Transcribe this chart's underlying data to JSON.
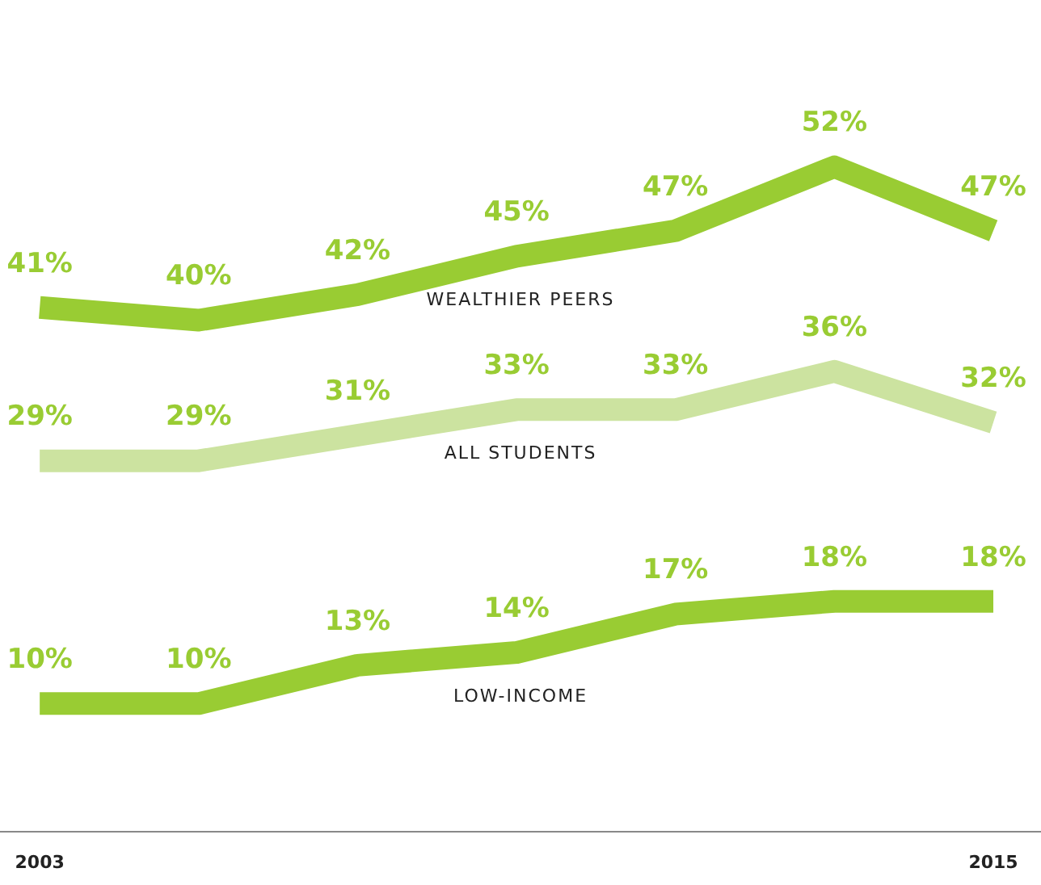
{
  "chart_data": {
    "type": "line",
    "x": [
      2003,
      2005,
      2007,
      2009,
      2011,
      2013,
      2015
    ],
    "xlim": [
      2002.5,
      2015.6
    ],
    "xticks": [
      2003,
      2015
    ],
    "grid": false,
    "legend": false,
    "marker": "none",
    "line_style": "solid",
    "series": [
      {
        "name": "WEALTHIER PEERS",
        "color": "#99cc33",
        "values": [
          41,
          40,
          42,
          45,
          47,
          52,
          47
        ],
        "value_labels": [
          "41%",
          "40%",
          "42%",
          "45%",
          "47%",
          "52%",
          "47%"
        ]
      },
      {
        "name": "ALL STUDENTS",
        "color": "#cce3a0",
        "values": [
          29,
          29,
          31,
          33,
          33,
          36,
          32
        ],
        "value_labels": [
          "29%",
          "29%",
          "31%",
          "33%",
          "33%",
          "36%",
          "32%"
        ]
      },
      {
        "name": "LOW-INCOME",
        "color": "#99cc33",
        "values": [
          10,
          10,
          13,
          14,
          17,
          18,
          18
        ],
        "value_labels": [
          "10%",
          "10%",
          "13%",
          "14%",
          "17%",
          "18%",
          "18%"
        ]
      }
    ]
  }
}
